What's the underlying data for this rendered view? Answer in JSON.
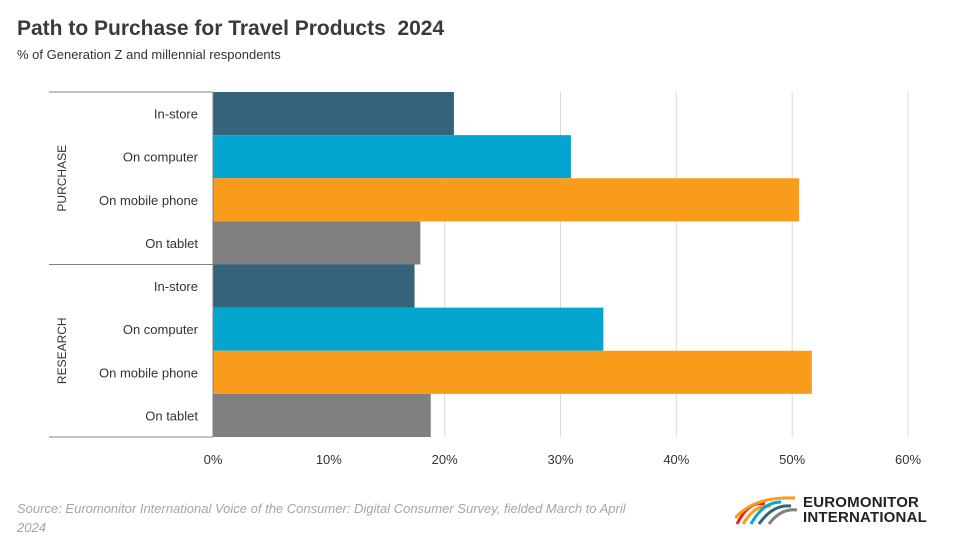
{
  "header": {
    "title": "Path to Purchase for Travel Products  2024",
    "subtitle": "% of Generation Z and millennial respondents"
  },
  "footer": {
    "source": "Source: Euromonitor International Voice of the Consumer: Digital Consumer Survey, fielded March to April 2024",
    "logo_line1": "EUROMONITOR",
    "logo_line2": "INTERNATIONAL"
  },
  "chart_data": {
    "type": "bar",
    "orientation": "horizontal",
    "title": "Path to Purchase for Travel Products  2024",
    "subtitle": "% of Generation Z and millennial respondents",
    "xlim": [
      0,
      60
    ],
    "xticks": [
      0,
      10,
      20,
      30,
      40,
      50,
      60
    ],
    "tick_suffix": "%",
    "grid": true,
    "groups": [
      {
        "name": "PURCHASE",
        "bars": [
          {
            "label": "In-store",
            "value": 20.8,
            "color": "#35637c"
          },
          {
            "label": "On computer",
            "value": 30.9,
            "color": "#04a5ce"
          },
          {
            "label": "On mobile phone",
            "value": 50.6,
            "color": "#f99c1c"
          },
          {
            "label": "On tablet",
            "value": 17.9,
            "color": "#808080"
          }
        ]
      },
      {
        "name": "RESEARCH",
        "bars": [
          {
            "label": "In-store",
            "value": 17.4,
            "color": "#35637c"
          },
          {
            "label": "On computer",
            "value": 33.7,
            "color": "#04a5ce"
          },
          {
            "label": "On mobile phone",
            "value": 51.7,
            "color": "#f99c1c"
          },
          {
            "label": "On tablet",
            "value": 18.8,
            "color": "#808080"
          }
        ]
      }
    ]
  },
  "logo_colors": [
    "#e1251b",
    "#f99c1c",
    "#04a5ce",
    "#35637c",
    "#808080"
  ]
}
